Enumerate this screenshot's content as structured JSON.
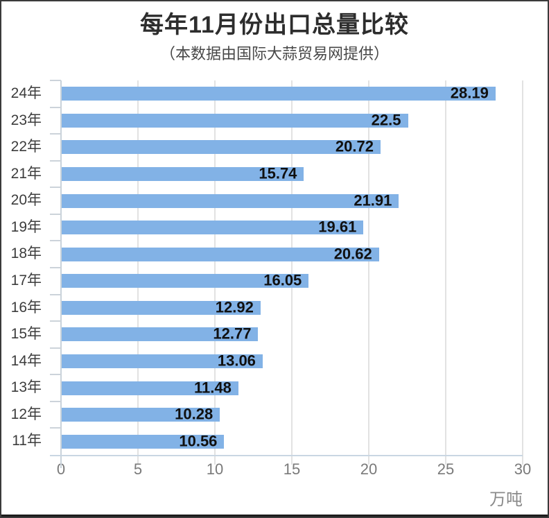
{
  "header": {
    "title": "每年11月份出口总量比较",
    "subtitle": "（本数据由国际大蒜贸易网提供）"
  },
  "chart_data": {
    "type": "bar",
    "orientation": "horizontal",
    "title": "每年11月份出口总量比较",
    "subtitle": "（本数据由国际大蒜贸易网提供）",
    "categories": [
      "24年",
      "23年",
      "22年",
      "21年",
      "20年",
      "19年",
      "18年",
      "17年",
      "16年",
      "15年",
      "14年",
      "13年",
      "12年",
      "11年"
    ],
    "values": [
      28.19,
      22.5,
      20.72,
      15.74,
      21.91,
      19.61,
      20.62,
      16.05,
      12.92,
      12.77,
      13.06,
      11.48,
      10.28,
      10.56
    ],
    "value_labels": [
      "28.19",
      "22.5",
      "20.72",
      "15.74",
      "21.91",
      "19.61",
      "20.62",
      "16.05",
      "12.92",
      "12.77",
      "13.06",
      "11.48",
      "10.28",
      "10.56"
    ],
    "xlabel": "万吨",
    "ylabel": "",
    "xlim": [
      0,
      30
    ],
    "xticks": [
      0,
      5,
      10,
      15,
      20,
      25,
      30
    ],
    "grid": true,
    "legend": false,
    "bar_color": "#82b2e6",
    "value_label_color": "#101010",
    "grid_color": "#e2e2e2",
    "axis_color": "#c9d2da",
    "tick_label_color": "#7a7a7a"
  }
}
